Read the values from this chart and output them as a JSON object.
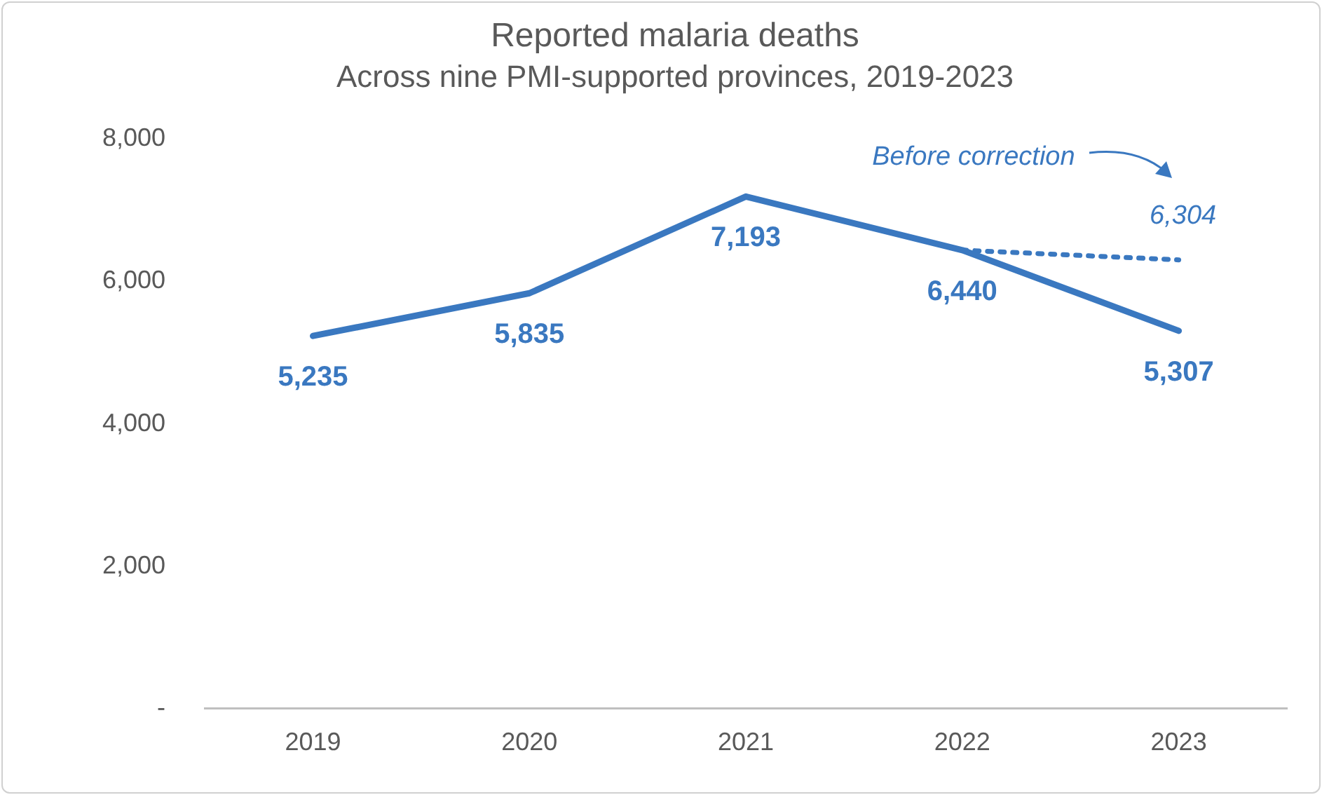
{
  "chart_data": {
    "type": "line",
    "title": "Reported malaria deaths",
    "subtitle": "Across nine PMI-supported provinces, 2019-2023",
    "categories": [
      "2019",
      "2020",
      "2021",
      "2022",
      "2023"
    ],
    "series": [
      {
        "color": "#3a78c0",
        "values": [
          5235,
          5835,
          7193,
          6440,
          5307
        ],
        "value_labels": [
          "5,235",
          "5,835",
          "7,193",
          "6,440",
          "5,307"
        ],
        "line_style": "solid"
      },
      {
        "name": "Before correction",
        "color": "#3a78c0",
        "values": [
          null,
          null,
          null,
          6440,
          6304
        ],
        "value_labels": [
          null,
          null,
          null,
          null,
          "6,304"
        ],
        "line_style": "dotted"
      }
    ],
    "ylim": [
      0,
      8000
    ],
    "yticks": [
      {
        "value": 0,
        "label": "-"
      },
      {
        "value": 2000,
        "label": "2,000"
      },
      {
        "value": 4000,
        "label": "4,000"
      },
      {
        "value": 6000,
        "label": "6,000"
      },
      {
        "value": 8000,
        "label": "8,000"
      }
    ],
    "grid": false,
    "legend": "top right",
    "marker": "none"
  }
}
